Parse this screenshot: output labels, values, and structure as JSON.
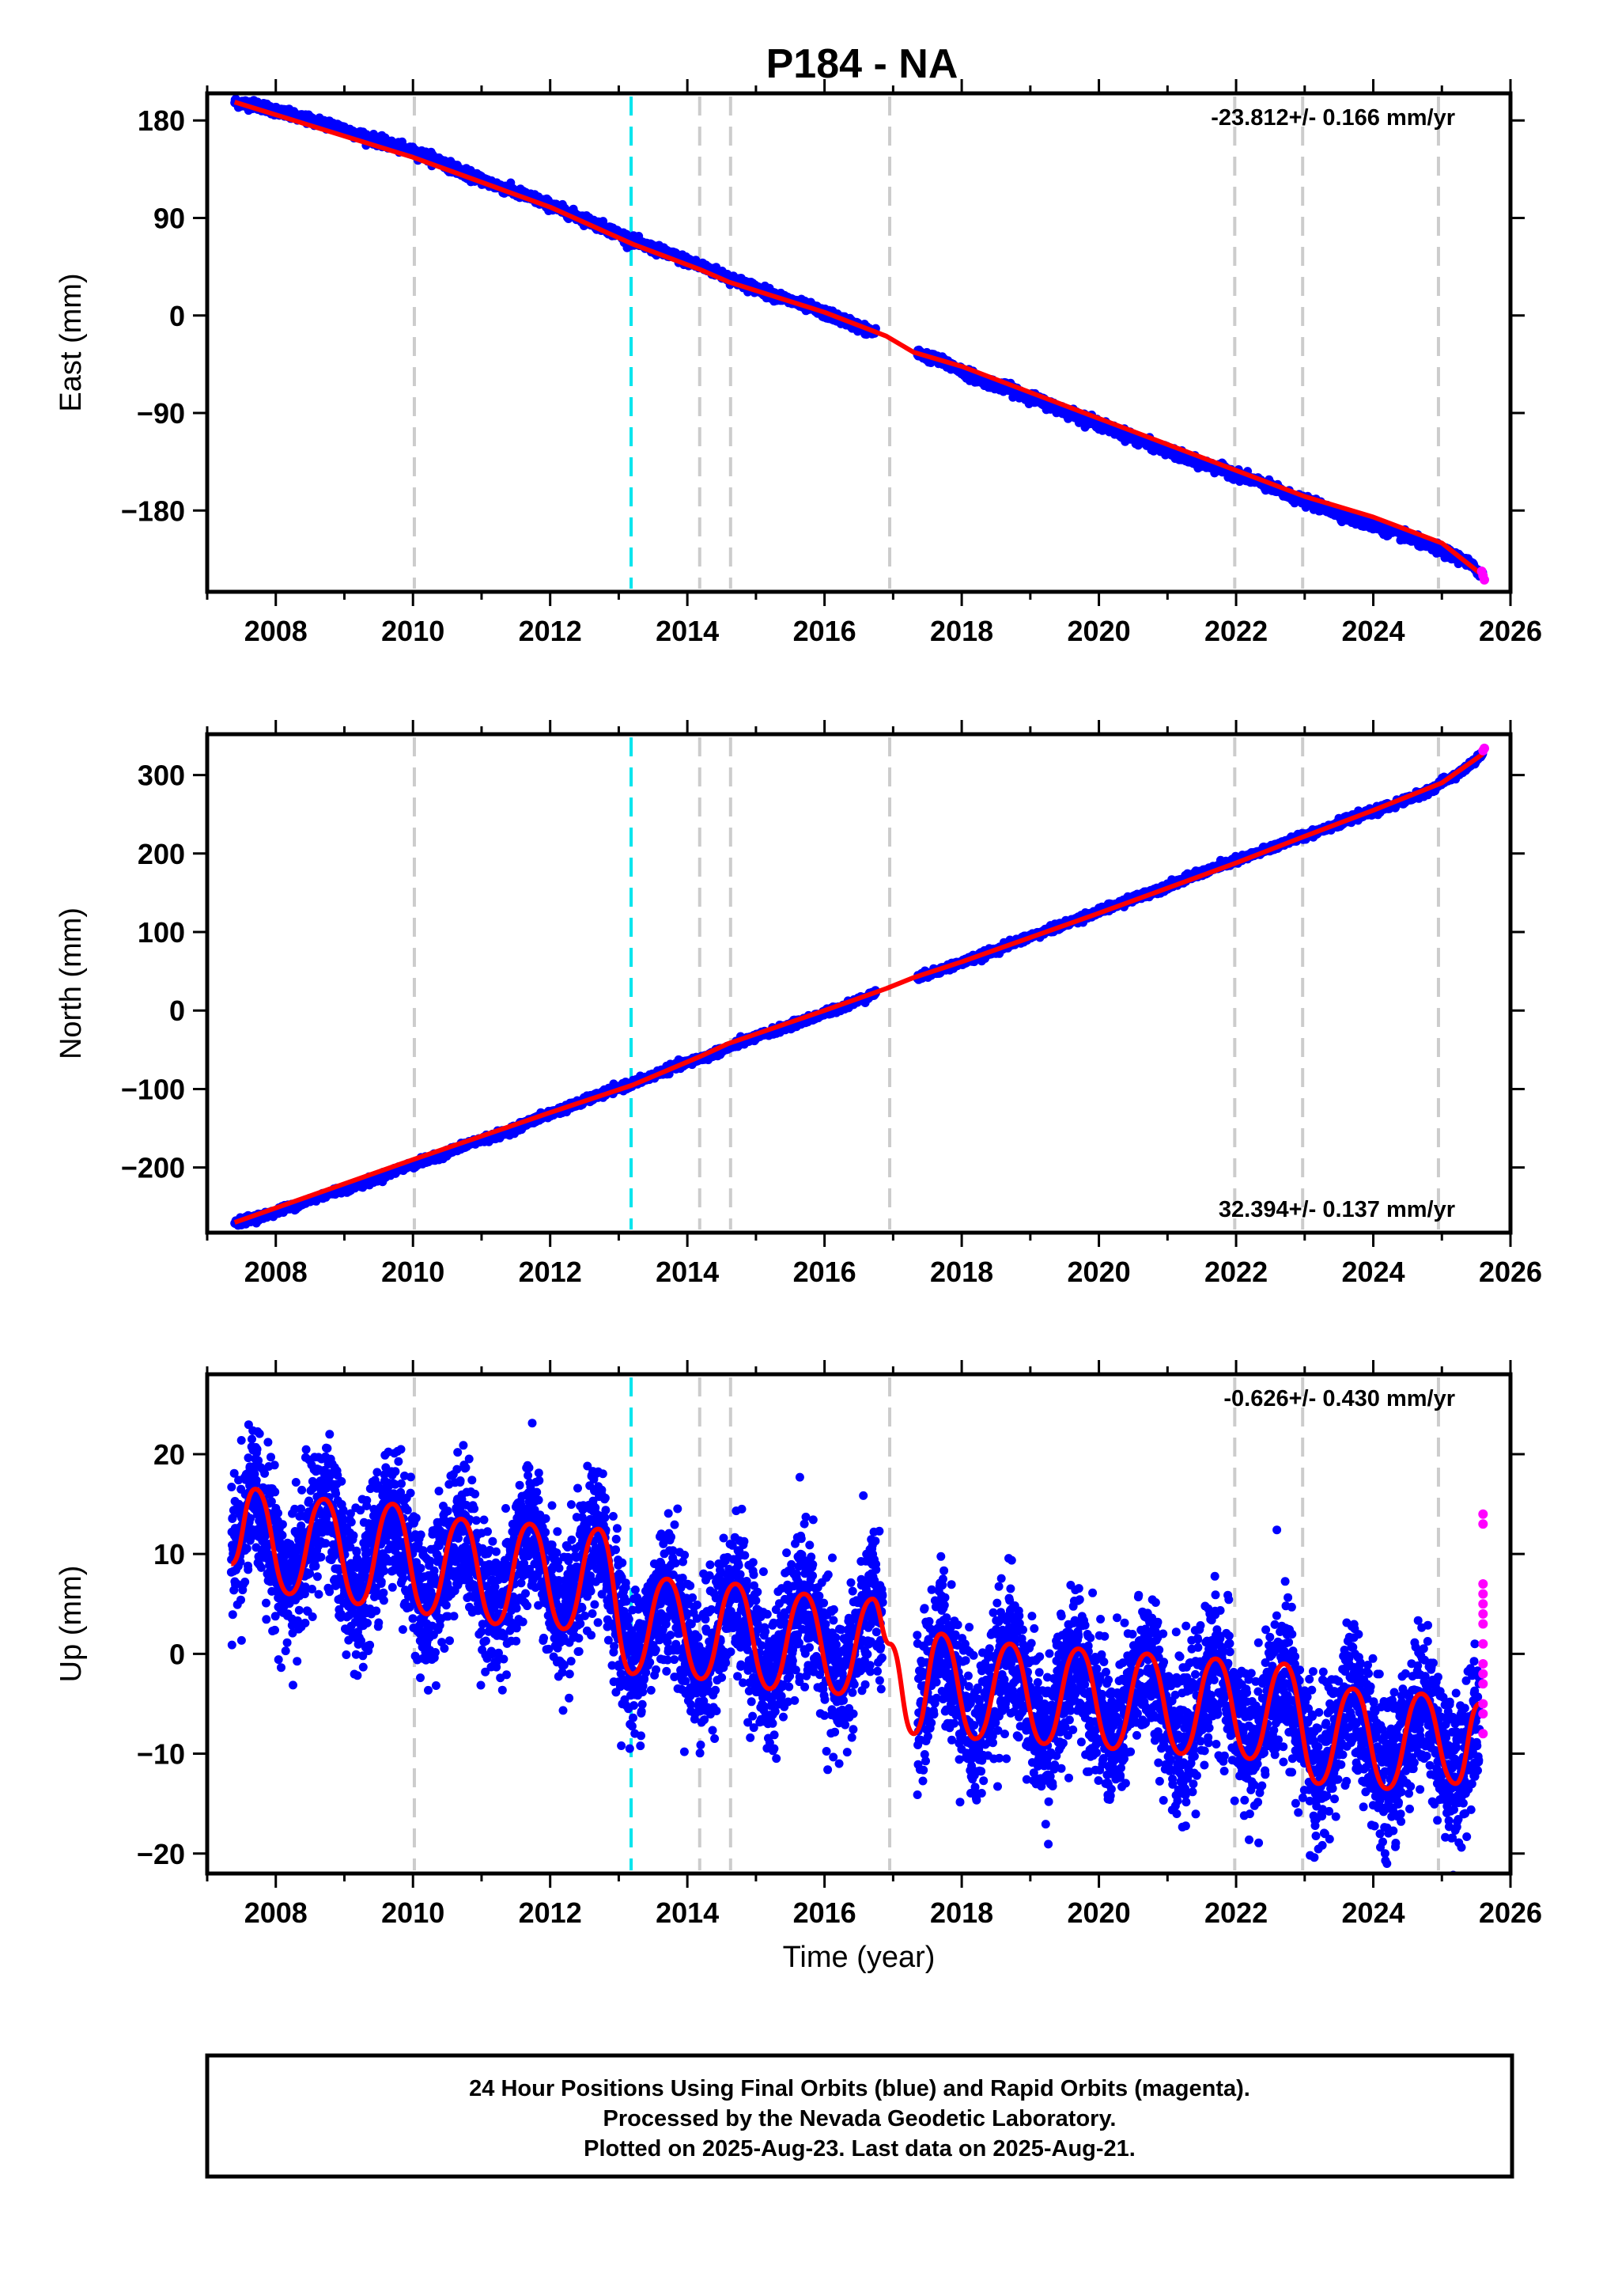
{
  "title": "P184 - NA",
  "chart_data": [
    {
      "type": "scatter",
      "panel": "east",
      "ylabel": "East (mm)",
      "xlabel": "",
      "rate_label": "-23.812+/- 0.166 mm/yr",
      "xlim": [
        2007.0,
        2026.0
      ],
      "ylim": [
        -255,
        205
      ],
      "yticks": [
        -180,
        -90,
        0,
        90,
        180
      ],
      "ytick_labels": [
        "−180",
        "−90",
        "0",
        "90",
        "180"
      ],
      "xticks": [
        2008,
        2010,
        2012,
        2014,
        2016,
        2018,
        2020,
        2022,
        2024,
        2026
      ],
      "xtick_labels": [
        "2008",
        "2010",
        "2012",
        "2014",
        "2016",
        "2018",
        "2020",
        "2022",
        "2024",
        "2026"
      ],
      "legend_position": "top-right",
      "grid": false,
      "series": [
        {
          "role": "final_orbits",
          "color": "#0000ff",
          "x": [
            2007.4,
            2007.8,
            2008.3,
            2008.8,
            2009.3,
            2009.8,
            2010.3,
            2010.8,
            2011.3,
            2011.8,
            2012.3,
            2012.8,
            2013.3,
            2013.8,
            2014.3,
            2014.8,
            2015.3,
            2015.8,
            2016.3,
            2016.8,
            2017.3,
            2017.8,
            2018.3,
            2018.8,
            2019.3,
            2019.8,
            2020.3,
            2020.8,
            2021.3,
            2021.8,
            2022.3,
            2022.8,
            2023.3,
            2023.8,
            2024.3,
            2024.8,
            2025.3,
            2025.6
          ],
          "y": [
            197,
            193,
            183,
            176,
            165,
            155,
            145,
            130,
            118,
            107,
            94,
            81,
            66,
            55,
            43,
            30,
            18,
            7,
            -5,
            -18,
            -33,
            -45,
            -60,
            -70,
            -83,
            -95,
            -108,
            -120,
            -133,
            -142,
            -153,
            -167,
            -178,
            -190,
            -200,
            -212,
            -225,
            -239
          ]
        },
        {
          "role": "rapid_orbits",
          "color": "#ff00ff",
          "x": [
            2025.58,
            2025.6,
            2025.62
          ],
          "y": [
            -236,
            -240,
            -244
          ]
        },
        {
          "role": "model_fit",
          "color": "#ff0000",
          "x": [
            2007.4,
            2010.0,
            2012.0,
            2013.2,
            2014.2,
            2014.6,
            2016.0,
            2016.9,
            2017.3,
            2018.0,
            2020.0,
            2022.0,
            2023.0,
            2024.0,
            2025.0,
            2025.6
          ],
          "y": [
            197,
            146,
            100,
            66,
            42,
            31,
            3,
            -19,
            -34,
            -47,
            -95,
            -143,
            -167,
            -186,
            -210,
            -240
          ]
        }
      ],
      "vlines": [
        {
          "x": 2010.02,
          "color": "#cccccc"
        },
        {
          "x": 2013.18,
          "color": "#00e5ee"
        },
        {
          "x": 2014.18,
          "color": "#cccccc"
        },
        {
          "x": 2014.63,
          "color": "#cccccc"
        },
        {
          "x": 2016.95,
          "color": "#cccccc"
        },
        {
          "x": 2021.98,
          "color": "#cccccc"
        },
        {
          "x": 2022.97,
          "color": "#cccccc"
        },
        {
          "x": 2024.95,
          "color": "#cccccc"
        }
      ]
    },
    {
      "type": "scatter",
      "panel": "north",
      "ylabel": "North (mm)",
      "xlabel": "",
      "rate_label": "32.394+/- 0.137 mm/yr",
      "xlim": [
        2007.0,
        2026.0
      ],
      "ylim": [
        -283,
        352
      ],
      "yticks": [
        -200,
        -100,
        0,
        100,
        200,
        300
      ],
      "ytick_labels": [
        "−200",
        "−100",
        "0",
        "100",
        "200",
        "300"
      ],
      "xticks": [
        2008,
        2010,
        2012,
        2014,
        2016,
        2018,
        2020,
        2022,
        2024,
        2026
      ],
      "xtick_labels": [
        "2008",
        "2010",
        "2012",
        "2014",
        "2016",
        "2018",
        "2020",
        "2022",
        "2024",
        "2026"
      ],
      "legend_position": "bottom-right",
      "grid": false,
      "series": [
        {
          "role": "final_orbits",
          "color": "#0000ff",
          "x": [
            2007.4,
            2007.8,
            2008.3,
            2008.8,
            2009.3,
            2009.8,
            2010.3,
            2010.8,
            2011.3,
            2011.8,
            2012.3,
            2012.8,
            2013.3,
            2013.8,
            2014.3,
            2014.8,
            2015.3,
            2015.8,
            2016.3,
            2016.8,
            2017.3,
            2017.8,
            2018.3,
            2018.8,
            2019.3,
            2019.8,
            2020.3,
            2020.8,
            2021.3,
            2021.8,
            2022.3,
            2022.8,
            2023.3,
            2023.8,
            2024.3,
            2024.8,
            2025.3,
            2025.6
          ],
          "y": [
            -270,
            -262,
            -248,
            -232,
            -220,
            -202,
            -188,
            -170,
            -157,
            -138,
            -122,
            -105,
            -90,
            -72,
            -58,
            -40,
            -25,
            -10,
            6,
            24,
            40,
            55,
            70,
            88,
            103,
            120,
            136,
            152,
            169,
            185,
            200,
            217,
            232,
            248,
            262,
            280,
            305,
            327
          ]
        },
        {
          "role": "rapid_orbits",
          "color": "#ff00ff",
          "x": [
            2025.6,
            2025.62
          ],
          "y": [
            331,
            334
          ]
        },
        {
          "role": "model_fit",
          "color": "#ff0000",
          "x": [
            2007.4,
            2010.0,
            2012.0,
            2013.2,
            2014.2,
            2014.6,
            2016.0,
            2016.9,
            2017.3,
            2018.0,
            2020.0,
            2022.0,
            2023.0,
            2024.0,
            2025.0,
            2025.6
          ],
          "y": [
            -270,
            -190,
            -130,
            -95,
            -58,
            -42,
            0,
            28,
            42,
            62,
            124,
            188,
            222,
            255,
            290,
            327
          ]
        }
      ],
      "vlines": [
        {
          "x": 2010.02,
          "color": "#cccccc"
        },
        {
          "x": 2013.18,
          "color": "#00e5ee"
        },
        {
          "x": 2014.18,
          "color": "#cccccc"
        },
        {
          "x": 2014.63,
          "color": "#cccccc"
        },
        {
          "x": 2016.95,
          "color": "#cccccc"
        },
        {
          "x": 2021.98,
          "color": "#cccccc"
        },
        {
          "x": 2022.97,
          "color": "#cccccc"
        },
        {
          "x": 2024.95,
          "color": "#cccccc"
        }
      ]
    },
    {
      "type": "scatter",
      "panel": "up",
      "ylabel": "Up (mm)",
      "xlabel": "Time (year)",
      "rate_label": "-0.626+/- 0.430 mm/yr",
      "xlim": [
        2007.0,
        2026.0
      ],
      "ylim": [
        -22,
        28
      ],
      "yticks": [
        -20,
        -10,
        0,
        10,
        20
      ],
      "ytick_labels": [
        "−20",
        "−10",
        "0",
        "10",
        "20"
      ],
      "xticks": [
        2008,
        2010,
        2012,
        2014,
        2016,
        2018,
        2020,
        2022,
        2024,
        2026
      ],
      "xtick_labels": [
        "2008",
        "2010",
        "2012",
        "2014",
        "2016",
        "2018",
        "2020",
        "2022",
        "2024",
        "2026"
      ],
      "legend_position": "top-right",
      "grid": false,
      "seasonal_amplitude_mm": 5,
      "scatter_spread_mm": 4,
      "series": [
        {
          "role": "final_orbits",
          "color": "#0000ff",
          "x_range": [
            2007.35,
            2025.55
          ],
          "gap": [
            2016.85,
            2017.35
          ]
        },
        {
          "role": "rapid_orbits",
          "color": "#ff00ff",
          "x": [
            2025.6,
            2025.6,
            2025.6,
            2025.6,
            2025.6,
            2025.6,
            2025.6,
            2025.6,
            2025.6,
            2025.6,
            2025.6,
            2025.6,
            2025.6,
            2025.6
          ],
          "y": [
            14,
            13,
            7,
            6,
            5,
            4,
            3,
            1,
            -1,
            -2,
            -3,
            -5,
            -6,
            -8
          ]
        },
        {
          "role": "model_fit",
          "color": "#ff0000",
          "x": [
            2007.35,
            2007.7,
            2008.2,
            2008.7,
            2009.2,
            2009.7,
            2010.2,
            2010.7,
            2011.2,
            2011.7,
            2012.2,
            2012.7,
            2013.2,
            2013.7,
            2014.2,
            2014.7,
            2015.2,
            2015.7,
            2016.2,
            2016.7,
            2016.95,
            2017.3,
            2017.7,
            2018.2,
            2018.7,
            2019.2,
            2019.7,
            2020.2,
            2020.7,
            2021.2,
            2021.7,
            2022.2,
            2022.7,
            2023.2,
            2023.7,
            2024.2,
            2024.7,
            2025.2,
            2025.55
          ],
          "y": [
            9,
            16.5,
            6,
            15.5,
            5,
            15,
            4,
            13.5,
            3,
            13,
            2.5,
            12.5,
            -2,
            7.5,
            -2.5,
            7,
            -3.5,
            6,
            -4,
            5.5,
            1,
            -8,
            2,
            -8.5,
            1,
            -9,
            0.5,
            -9.5,
            0,
            -10,
            -0.5,
            -10.5,
            -1,
            -13,
            -3.5,
            -13.5,
            -4,
            -13,
            -5
          ]
        }
      ],
      "vlines": [
        {
          "x": 2010.02,
          "color": "#cccccc"
        },
        {
          "x": 2013.18,
          "color": "#00e5ee"
        },
        {
          "x": 2014.18,
          "color": "#cccccc"
        },
        {
          "x": 2014.63,
          "color": "#cccccc"
        },
        {
          "x": 2016.95,
          "color": "#cccccc"
        },
        {
          "x": 2021.98,
          "color": "#cccccc"
        },
        {
          "x": 2022.97,
          "color": "#cccccc"
        },
        {
          "x": 2024.95,
          "color": "#cccccc"
        }
      ]
    }
  ],
  "footer": {
    "line1": "24 Hour Positions Using Final Orbits (blue) and Rapid Orbits (magenta).",
    "line2": "Processed by the Nevada Geodetic Laboratory.",
    "line3": "Plotted on 2025-Aug-23. Last data on 2025-Aug-21."
  }
}
